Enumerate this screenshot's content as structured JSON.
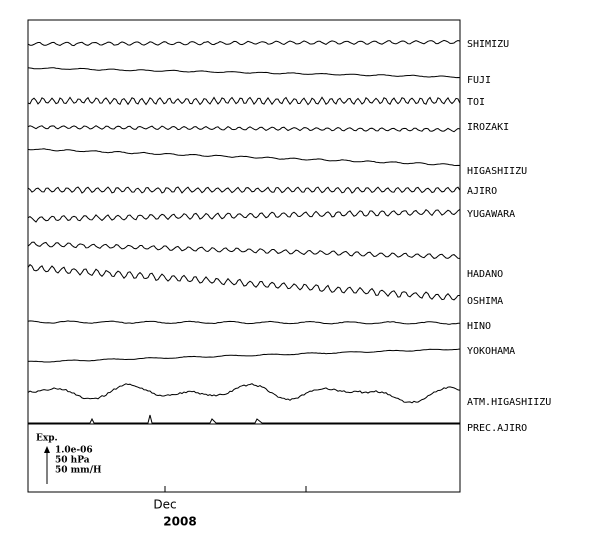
{
  "stations": [
    "SHIMIZU",
    "FUJI",
    "TOI",
    "IROZAKI",
    "HIGASHIIZU",
    "AJIRO",
    "YUGAWARA",
    "HADANO",
    "OSHIMA",
    "HINO",
    "YOKOHAMA",
    "ATM.HIGASHIIZU",
    "PREC.AJIRO"
  ],
  "legend": {
    "title": "Exp.",
    "lines": [
      "1.0e-06",
      "50 hPa",
      "50 mm/H"
    ]
  },
  "x_axis": {
    "month": "Dec",
    "year": "2008"
  }
}
